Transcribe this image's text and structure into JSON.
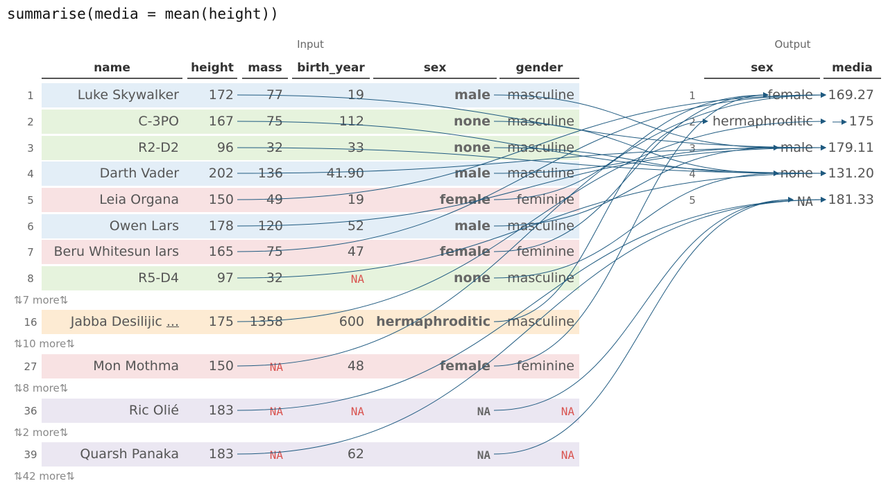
{
  "code": "summarise(media = mean(height))",
  "input_caption": "Input",
  "output_caption": "Output",
  "input_columns": [
    "name",
    "height",
    "mass",
    "birth_year",
    "sex",
    "gender"
  ],
  "output_columns": [
    "sex",
    "media"
  ],
  "colors": {
    "male": "#e3eef7",
    "none": "#e6f3dd",
    "female": "#f8e2e3",
    "hermaphroditic": "#fdebd3",
    "na": "#ebe7f2",
    "arrow": "#1f5a80",
    "na_text": "#d9534f"
  },
  "rows": [
    {
      "num": "1",
      "name": "Luke Skywalker",
      "height": "172",
      "mass": "77",
      "birth_year": "19",
      "sex": "male",
      "gender": "masculine"
    },
    {
      "num": "2",
      "name": "C-3PO",
      "height": "167",
      "mass": "75",
      "birth_year": "112",
      "sex": "none",
      "gender": "masculine"
    },
    {
      "num": "3",
      "name": "R2-D2",
      "height": "96",
      "mass": "32",
      "birth_year": "33",
      "sex": "none",
      "gender": "masculine"
    },
    {
      "num": "4",
      "name": "Darth Vader",
      "height": "202",
      "mass": "136",
      "birth_year": "41.90",
      "sex": "male",
      "gender": "masculine"
    },
    {
      "num": "5",
      "name": "Leia Organa",
      "height": "150",
      "mass": "49",
      "birth_year": "19",
      "sex": "female",
      "gender": "feminine"
    },
    {
      "num": "6",
      "name": "Owen Lars",
      "height": "178",
      "mass": "120",
      "birth_year": "52",
      "sex": "male",
      "gender": "masculine"
    },
    {
      "num": "7",
      "name": "Beru Whitesun lars",
      "height": "165",
      "mass": "75",
      "birth_year": "47",
      "sex": "female",
      "gender": "feminine"
    },
    {
      "num": "8",
      "name": "R5-D4",
      "height": "97",
      "mass": "32",
      "birth_year": "NA",
      "sex": "none",
      "gender": "masculine"
    },
    {
      "num": "16",
      "name": "Jabba Desilijic ...",
      "height": "175",
      "mass": "1358",
      "birth_year": "600",
      "sex": "hermaphroditic",
      "gender": "masculine"
    },
    {
      "num": "27",
      "name": "Mon Mothma",
      "height": "150",
      "mass": "NA",
      "birth_year": "48",
      "sex": "female",
      "gender": "feminine"
    },
    {
      "num": "36",
      "name": "Ric Olié",
      "height": "183",
      "mass": "NA",
      "birth_year": "NA",
      "sex": "NA",
      "gender": "NA"
    },
    {
      "num": "39",
      "name": "Quarsh Panaka",
      "height": "183",
      "mass": "NA",
      "birth_year": "62",
      "sex": "NA",
      "gender": "NA"
    }
  ],
  "more_rows": [
    "⇅7 more⇅",
    "⇅10 more⇅",
    "⇅8 more⇅",
    "⇅2 more⇅",
    "⇅42 more⇅"
  ],
  "output_rows": [
    {
      "num": "1",
      "sex": "female",
      "media": "169.27"
    },
    {
      "num": "2",
      "sex": "hermaphroditic",
      "media": "175"
    },
    {
      "num": "3",
      "sex": "male",
      "media": "179.11"
    },
    {
      "num": "4",
      "sex": "none",
      "media": "131.20"
    },
    {
      "num": "5",
      "sex": "NA",
      "media": "181.33"
    }
  ]
}
